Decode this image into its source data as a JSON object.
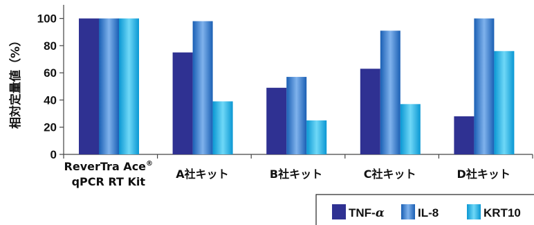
{
  "chart_data": {
    "type": "bar",
    "ylabel": "相対定量値（%）",
    "ylim": [
      0,
      110
    ],
    "yticks": [
      0,
      20,
      40,
      60,
      80,
      100
    ],
    "grid": false,
    "legend_position": "bottom-right",
    "categories": [
      {
        "line1": "ReverTra Ace",
        "superscript": "®",
        "line2": "qPCR RT Kit",
        "highlight": true
      },
      {
        "line1": "A社キット",
        "superscript": "",
        "line2": "",
        "highlight": false
      },
      {
        "line1": "B社キット",
        "superscript": "",
        "line2": "",
        "highlight": false
      },
      {
        "line1": "C社キット",
        "superscript": "",
        "line2": "",
        "highlight": false
      },
      {
        "line1": "D社キット",
        "superscript": "",
        "line2": "",
        "highlight": false
      }
    ],
    "series": [
      {
        "name": "TNF-α",
        "legend_prefix": "TNF-",
        "legend_greek": "α",
        "colorKey": "navy",
        "values": [
          100,
          75,
          49,
          63,
          28
        ]
      },
      {
        "name": "IL-8",
        "colorKey": "blue",
        "values": [
          100,
          98,
          57,
          91,
          100
        ]
      },
      {
        "name": "KRT10",
        "colorKey": "cyan",
        "values": [
          100,
          39,
          25,
          37,
          76
        ]
      }
    ],
    "colors": {
      "highlight_text": "#e8384a",
      "navy": "#2f3192",
      "blue_dark": "#1a5fb4",
      "blue_light": "#7fb2ec",
      "cyan_dark": "#0a97d3",
      "cyan_light": "#6fd8f7"
    }
  }
}
